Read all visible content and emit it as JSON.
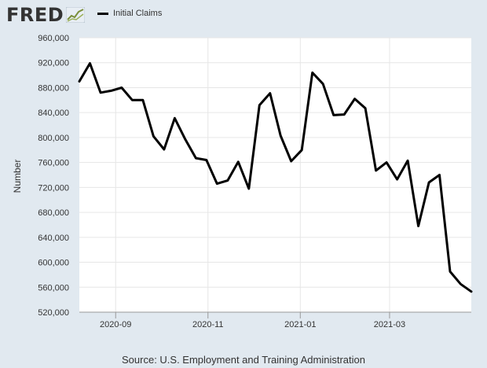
{
  "brand": {
    "name": "FRED",
    "icon": "fred-chart-logo-icon"
  },
  "legend": {
    "label": "Initial Claims",
    "color": "#000000"
  },
  "source": "Source: U.S. Employment and Training Administration",
  "colors": {
    "background": "#e1e9f0",
    "plot": "#ffffff",
    "grid": "#e6e6e6",
    "line": "#000000"
  },
  "chart_data": {
    "type": "line",
    "title": "",
    "ylabel": "Number",
    "xlabel": "",
    "ylim": [
      520000,
      960000
    ],
    "yticks": [
      520000,
      560000,
      600000,
      640000,
      680000,
      720000,
      760000,
      800000,
      840000,
      880000,
      920000,
      960000
    ],
    "ytick_labels": [
      "520,000",
      "560,000",
      "600,000",
      "640,000",
      "680,000",
      "720,000",
      "760,000",
      "800,000",
      "840,000",
      "880,000",
      "920,000",
      "960,000"
    ],
    "xlim": [
      "2020-08-08",
      "2021-04-24"
    ],
    "xticks": [
      "2020-09-01",
      "2020-11-01",
      "2021-01-01",
      "2021-03-01"
    ],
    "xtick_labels": [
      "2020-09",
      "2020-11",
      "2021-01",
      "2021-03"
    ],
    "grid": true,
    "legend_position": "top-left",
    "series": [
      {
        "name": "Initial Claims",
        "x": [
          "2020-08-08",
          "2020-08-15",
          "2020-08-22",
          "2020-08-29",
          "2020-09-05",
          "2020-09-12",
          "2020-09-19",
          "2020-09-26",
          "2020-10-03",
          "2020-10-10",
          "2020-10-17",
          "2020-10-24",
          "2020-10-31",
          "2020-11-07",
          "2020-11-14",
          "2020-11-21",
          "2020-11-28",
          "2020-12-05",
          "2020-12-12",
          "2020-12-19",
          "2020-12-26",
          "2021-01-02",
          "2021-01-09",
          "2021-01-16",
          "2021-01-23",
          "2021-01-30",
          "2021-02-06",
          "2021-02-13",
          "2021-02-20",
          "2021-02-27",
          "2021-03-06",
          "2021-03-13",
          "2021-03-20",
          "2021-03-27",
          "2021-04-03",
          "2021-04-10",
          "2021-04-17",
          "2021-04-24"
        ],
        "values": [
          890000,
          919000,
          872000,
          875000,
          880000,
          860000,
          860000,
          802000,
          781000,
          831000,
          797000,
          767000,
          764000,
          726000,
          731000,
          761000,
          718000,
          852000,
          871000,
          803000,
          762000,
          780000,
          904000,
          886000,
          836000,
          837000,
          862000,
          847000,
          747000,
          760000,
          733000,
          763000,
          658000,
          728000,
          740000,
          585000,
          565000,
          553000
        ]
      }
    ]
  }
}
